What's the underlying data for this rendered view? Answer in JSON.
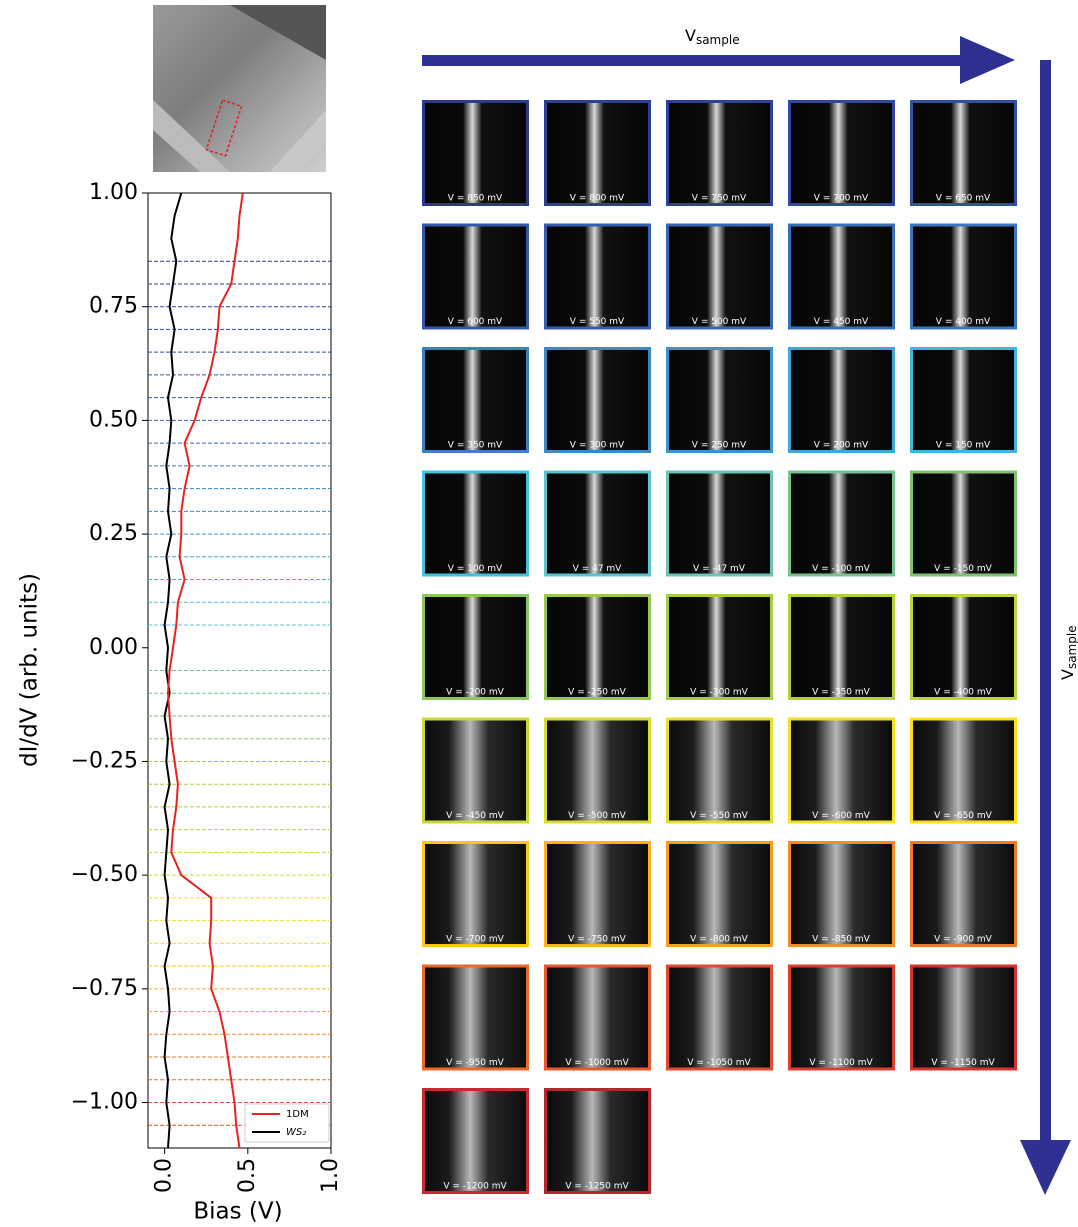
{
  "chart_data": {
    "type": "line",
    "y_label": "dI/dV (arb. units)",
    "x_label": "Bias (V)",
    "ylim": [
      -1.1,
      1.0
    ],
    "xlim": [
      -0.1,
      1.0
    ],
    "yticks": [
      {
        "value": 1,
        "label": "1.00"
      },
      {
        "value": 0.75,
        "label": "0.75"
      },
      {
        "value": 0.5,
        "label": "0.50"
      },
      {
        "value": 0.25,
        "label": "0.25"
      },
      {
        "value": 0,
        "label": "0.00"
      },
      {
        "value": -0.25,
        "label": "−0.25"
      },
      {
        "value": -0.5,
        "label": "−0.50"
      },
      {
        "value": -0.75,
        "label": "−0.75"
      },
      {
        "value": -1,
        "label": "−1.00"
      }
    ],
    "xticks": [
      {
        "value": 0,
        "label": "0.0"
      },
      {
        "value": 0.5,
        "label": "0.5"
      },
      {
        "value": 1,
        "label": "1.0"
      }
    ],
    "y": [
      1.0,
      0.95,
      0.9,
      0.85,
      0.8,
      0.75,
      0.7,
      0.65,
      0.6,
      0.55,
      0.5,
      0.45,
      0.4,
      0.35,
      0.3,
      0.25,
      0.2,
      0.15,
      0.1,
      0.05,
      0.0,
      -0.05,
      -0.1,
      -0.15,
      -0.2,
      -0.25,
      -0.3,
      -0.35,
      -0.4,
      -0.45,
      -0.5,
      -0.55,
      -0.6,
      -0.65,
      -0.7,
      -0.75,
      -0.8,
      -0.85,
      -0.9,
      -0.95,
      -1.0,
      -1.05,
      -1.1
    ],
    "series": [
      {
        "name": "1DM",
        "color": "#e8231f",
        "values": [
          0.47,
          0.45,
          0.44,
          0.42,
          0.4,
          0.33,
          0.32,
          0.3,
          0.27,
          0.22,
          0.18,
          0.12,
          0.15,
          0.12,
          0.1,
          0.1,
          0.09,
          0.12,
          0.08,
          0.07,
          0.05,
          0.03,
          0.02,
          0.03,
          0.04,
          0.06,
          0.08,
          0.07,
          0.05,
          0.04,
          0.1,
          0.28,
          0.28,
          0.27,
          0.29,
          0.28,
          0.33,
          0.36,
          0.38,
          0.4,
          0.42,
          0.43,
          0.45
        ]
      },
      {
        "name": "WS₂",
        "color": "#000000",
        "values": [
          0.1,
          0.06,
          0.04,
          0.07,
          0.05,
          0.03,
          0.06,
          0.04,
          0.05,
          0.02,
          0.04,
          0.03,
          0.01,
          0.03,
          0.02,
          0.04,
          0.01,
          0.03,
          0.02,
          0.0,
          0.02,
          0.01,
          0.03,
          0.0,
          0.02,
          0.01,
          0.03,
          0.0,
          0.02,
          0.01,
          0.0,
          0.02,
          0.01,
          0.03,
          0.0,
          0.02,
          0.03,
          0.01,
          0.0,
          0.02,
          0.01,
          0.03,
          0.02
        ]
      }
    ],
    "hlines": [
      {
        "value": 0.85,
        "color": "#2b3a8f"
      },
      {
        "value": 0.8,
        "color": "#2d3e95"
      },
      {
        "value": 0.75,
        "color": "#2f4299"
      },
      {
        "value": 0.7,
        "color": "#30489d"
      },
      {
        "value": 0.65,
        "color": "#3150a2"
      },
      {
        "value": 0.6,
        "color": "#3358a8"
      },
      {
        "value": 0.55,
        "color": "#345fae"
      },
      {
        "value": 0.5,
        "color": "#3667b3"
      },
      {
        "value": 0.45,
        "color": "#376fb8"
      },
      {
        "value": 0.4,
        "color": "#3877bd"
      },
      {
        "value": 0.35,
        "color": "#3a80c2"
      },
      {
        "value": 0.3,
        "color": "#3b8ac8"
      },
      {
        "value": 0.25,
        "color": "#3c93cd"
      },
      {
        "value": 0.2,
        "color": "#3fa6d8"
      },
      {
        "value": 0.15,
        "color": "#3fb6e2"
      },
      {
        "value": 0.1,
        "color": "#45c0e0"
      },
      {
        "value": 0.05,
        "color": "#5cc4d0"
      },
      {
        "value": -0.05,
        "color": "#6ec3b0"
      },
      {
        "value": -0.1,
        "color": "#78c290"
      },
      {
        "value": -0.15,
        "color": "#80c272"
      },
      {
        "value": -0.2,
        "color": "#8cc55e"
      },
      {
        "value": -0.25,
        "color": "#98c850"
      },
      {
        "value": -0.3,
        "color": "#a6cc44"
      },
      {
        "value": -0.35,
        "color": "#b2d03c"
      },
      {
        "value": -0.4,
        "color": "#bed43a"
      },
      {
        "value": -0.45,
        "color": "#cad736"
      },
      {
        "value": -0.5,
        "color": "#d8dc30"
      },
      {
        "value": -0.55,
        "color": "#e6df2a"
      },
      {
        "value": -0.6,
        "color": "#f2e024"
      },
      {
        "value": -0.65,
        "color": "#ffde17"
      },
      {
        "value": -0.7,
        "color": "#fdc718"
      },
      {
        "value": -0.75,
        "color": "#fbb41c"
      },
      {
        "value": -0.8,
        "color": "#f6a020"
      },
      {
        "value": -0.85,
        "color": "#f28c24"
      },
      {
        "value": -0.9,
        "color": "#ee7a27"
      },
      {
        "value": -0.95,
        "color": "#ea682a"
      },
      {
        "value": -1.0,
        "color": "#e5582c"
      },
      {
        "value": -1.05,
        "color": "#e04a2e"
      }
    ]
  },
  "arrow_label": {
    "main": "V",
    "sub": "sample"
  },
  "images": [
    {
      "label": "V = 850 mV",
      "color": "#2b3a8f"
    },
    {
      "label": "V = 800 mV",
      "color": "#2d3e95"
    },
    {
      "label": "V = 750 mV",
      "color": "#2f4299"
    },
    {
      "label": "V = 700 mV",
      "color": "#30489d"
    },
    {
      "label": "V = 650 mV",
      "color": "#3150a2"
    },
    {
      "label": "V = 600 mV",
      "color": "#3358a8"
    },
    {
      "label": "V = 550 mV",
      "color": "#345fae"
    },
    {
      "label": "V = 500 mV",
      "color": "#3667b3"
    },
    {
      "label": "V = 450 mV",
      "color": "#376fb8"
    },
    {
      "label": "V = 400 mV",
      "color": "#3877bd"
    },
    {
      "label": "V = 350 mV",
      "color": "#3a80c2"
    },
    {
      "label": "V = 300 mV",
      "color": "#3b8ac8"
    },
    {
      "label": "V = 250 mV",
      "color": "#3c93cd"
    },
    {
      "label": "V = 200 mV",
      "color": "#3fa6d8"
    },
    {
      "label": "V = 150 mV",
      "color": "#3fb6e2"
    },
    {
      "label": "V = 100 mV",
      "color": "#45c0e0"
    },
    {
      "label": "V = 47 mV",
      "color": "#5cc4d0"
    },
    {
      "label": "V = -47 mV",
      "color": "#6ec3b0"
    },
    {
      "label": "V = -100 mV",
      "color": "#78c290"
    },
    {
      "label": "V = -150 mV",
      "color": "#80c272"
    },
    {
      "label": "V = -200 mV",
      "color": "#8cc55e"
    },
    {
      "label": "V = -250 mV",
      "color": "#98c850"
    },
    {
      "label": "V = -300 mV",
      "color": "#a6cc44"
    },
    {
      "label": "V = -350 mV",
      "color": "#b2d03c"
    },
    {
      "label": "V = -400 mV",
      "color": "#bed43a"
    },
    {
      "label": "V = -450 mV",
      "color": "#cad736"
    },
    {
      "label": "V = -500 mV",
      "color": "#d8dc30"
    },
    {
      "label": "V = -550 mV",
      "color": "#e6df2a"
    },
    {
      "label": "V = -600 mV",
      "color": "#f2e024"
    },
    {
      "label": "V = -650 mV",
      "color": "#ffde17"
    },
    {
      "label": "V = -700 mV",
      "color": "#fdc718"
    },
    {
      "label": "V = -750 mV",
      "color": "#fbb41c"
    },
    {
      "label": "V = -800 mV",
      "color": "#f6a020"
    },
    {
      "label": "V = -850 mV",
      "color": "#f28c24"
    },
    {
      "label": "V = -900 mV",
      "color": "#ee7a27"
    },
    {
      "label": "V = -950 mV",
      "color": "#ea682a"
    },
    {
      "label": "V = -1000 mV",
      "color": "#e5582c"
    },
    {
      "label": "V = -1050 mV",
      "color": "#e04a2e"
    },
    {
      "label": "V = -1100 mV",
      "color": "#db3d2f"
    },
    {
      "label": "V = -1150 mV",
      "color": "#d53230"
    },
    {
      "label": "V = -1200 mV",
      "color": "#c62a2f"
    },
    {
      "label": "V = -1250 mV",
      "color": "#b8252c"
    }
  ]
}
